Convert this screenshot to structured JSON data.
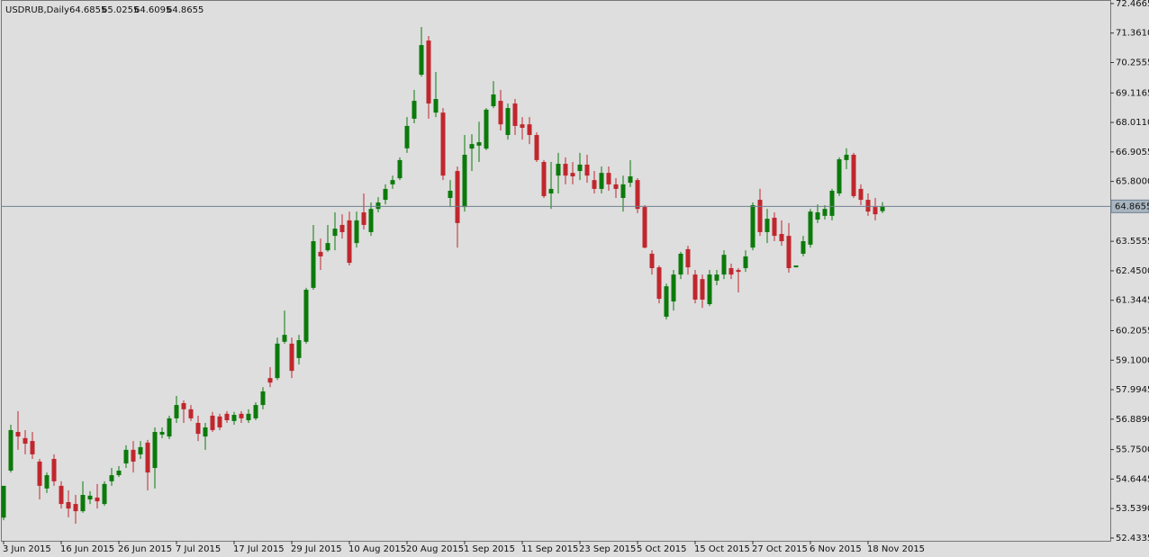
{
  "chart_data": {
    "type": "candlestick",
    "title": "USDRUB,Daily",
    "up_color": "#0b7a0b",
    "down_color": "#c0272d",
    "price_line_color": "#6f8090",
    "categories": [
      "3 Jun 2015",
      null,
      null,
      null,
      null,
      null,
      null,
      null,
      "16 Jun 2015",
      null,
      null,
      null,
      null,
      null,
      null,
      null,
      "26 Jun 2015",
      null,
      null,
      null,
      null,
      null,
      null,
      null,
      "7 Jul 2015",
      null,
      null,
      null,
      null,
      null,
      null,
      null,
      "17 Jul 2015",
      null,
      null,
      null,
      null,
      null,
      null,
      null,
      "29 Jul 2015",
      null,
      null,
      null,
      null,
      null,
      null,
      null,
      "10 Aug 2015",
      null,
      null,
      null,
      null,
      null,
      null,
      null,
      "20 Aug 2015",
      null,
      null,
      null,
      null,
      null,
      null,
      null,
      "1 Sep 2015",
      null,
      null,
      null,
      null,
      null,
      null,
      null,
      "11 Sep 2015",
      null,
      null,
      null,
      null,
      null,
      null,
      null,
      "23 Sep 2015",
      null,
      null,
      null,
      null,
      null,
      null,
      null,
      "5 Oct 2015",
      null,
      null,
      null,
      null,
      null,
      null,
      null,
      "15 Oct 2015",
      null,
      null,
      null,
      null,
      null,
      null,
      null,
      "27 Oct 2015",
      null,
      null,
      null,
      null,
      null,
      null,
      null,
      "6 Nov 2015",
      null,
      null,
      null,
      null,
      null,
      null,
      null,
      "18 Nov 2015",
      null,
      null
    ],
    "open": [
      53.2,
      54.96,
      56.41,
      56.18,
      56.07,
      55.3,
      54.29,
      55.4,
      54.39,
      53.78,
      53.71,
      53.44,
      53.88,
      53.95,
      53.71,
      54.56,
      54.79,
      55.23,
      55.74,
      55.57,
      56.01,
      55.06,
      56.31,
      56.24,
      56.92,
      57.49,
      57.26,
      56.75,
      56.24,
      57.02,
      56.99,
      57.09,
      56.82,
      57.09,
      56.85,
      56.92,
      57.42,
      58.43,
      58.43,
      59.79,
      59.72,
      59.18,
      59.79,
      61.81,
      63.16,
      63.22,
      63.76,
      64.17,
      64.34,
      63.49,
      64.64,
      63.9,
      64.77,
      65.11,
      65.69,
      65.92,
      67.04,
      68.15,
      69.8,
      71.08,
      68.38,
      68.38,
      65.18,
      66.19,
      64.84,
      67.03,
      67.14,
      67.03,
      68.62,
      68.82,
      67.54,
      68.72,
      67.94,
      67.94,
      67.54,
      66.53,
      65.35,
      66.02,
      66.46,
      66.12,
      66.19,
      66.43,
      65.85,
      65.52,
      66.12,
      65.69,
      65.18,
      65.75,
      65.85,
      64.84,
      63.09,
      62.58,
      60.73,
      61.3,
      62.31,
      63.26,
      62.31,
      62.14,
      61.2,
      62.08,
      62.31,
      62.55,
      62.48,
      62.55,
      63.32,
      65.11,
      63.9,
      64.44,
      63.83,
      63.76,
      62.58,
      63.09,
      63.43,
      64.37,
      64.51,
      64.51,
      65.35,
      66.6,
      66.8,
      65.52,
      65.11,
      64.84,
      64.6855
    ],
    "high": [
      54.39,
      56.68,
      57.19,
      56.48,
      56.41,
      55.4,
      54.89,
      55.57,
      54.56,
      54.22,
      54.05,
      54.56,
      54.19,
      54.46,
      54.56,
      55.06,
      55.13,
      55.91,
      56.07,
      56.07,
      56.11,
      56.58,
      56.58,
      57.02,
      57.76,
      57.59,
      57.42,
      57.02,
      56.75,
      57.16,
      57.09,
      57.19,
      57.16,
      57.19,
      57.26,
      57.52,
      58.09,
      58.84,
      59.95,
      60.96,
      59.95,
      60.05,
      61.81,
      64.17,
      63.66,
      64.17,
      64.64,
      64.57,
      64.67,
      64.67,
      65.35,
      65.01,
      65.21,
      65.69,
      66.02,
      66.7,
      68.21,
      69.23,
      71.59,
      71.25,
      69.9,
      68.55,
      65.85,
      66.36,
      67.54,
      67.57,
      68.04,
      68.55,
      69.56,
      69.23,
      68.72,
      68.89,
      68.21,
      68.21,
      67.64,
      66.6,
      66.53,
      66.87,
      66.7,
      66.53,
      66.87,
      66.8,
      66.19,
      66.36,
      66.36,
      65.92,
      66.02,
      66.6,
      65.92,
      64.91,
      63.22,
      62.65,
      61.97,
      62.48,
      63.16,
      63.39,
      62.48,
      62.31,
      62.48,
      62.48,
      63.22,
      62.72,
      62.55,
      63.22,
      65.01,
      65.52,
      64.77,
      64.64,
      64.34,
      64.24,
      62.65,
      63.76,
      64.77,
      64.94,
      64.91,
      65.52,
      66.7,
      67.04,
      66.87,
      65.69,
      65.35,
      65.18,
      65.0255
    ],
    "low": [
      53.1,
      54.89,
      55.74,
      55.57,
      55.4,
      53.88,
      54.12,
      54.39,
      53.54,
      53.21,
      52.97,
      53.38,
      53.71,
      53.54,
      53.64,
      54.39,
      54.72,
      55.06,
      54.89,
      55.4,
      54.22,
      54.29,
      56.18,
      56.14,
      56.75,
      56.75,
      56.82,
      56.07,
      55.74,
      56.41,
      56.48,
      56.75,
      56.68,
      56.75,
      56.75,
      56.85,
      57.26,
      58.09,
      58.36,
      59.72,
      58.43,
      58.94,
      59.72,
      61.74,
      62.48,
      63.16,
      63.22,
      63.66,
      62.65,
      63.32,
      64.0,
      63.76,
      64.64,
      64.94,
      65.52,
      65.85,
      66.87,
      67.98,
      69.73,
      68.15,
      68.21,
      65.85,
      64.84,
      63.32,
      64.67,
      66.19,
      66.53,
      66.97,
      68.55,
      67.71,
      67.37,
      67.54,
      67.37,
      67.2,
      66.53,
      65.18,
      64.77,
      65.35,
      65.69,
      65.69,
      65.85,
      65.75,
      65.35,
      65.35,
      65.45,
      65.18,
      64.67,
      65.59,
      64.61,
      63.29,
      62.31,
      61.23,
      60.63,
      60.96,
      62.14,
      62.31,
      61.23,
      61.06,
      61.13,
      61.91,
      62.14,
      62.14,
      61.64,
      62.41,
      63.22,
      63.76,
      63.49,
      63.56,
      63.39,
      62.38,
      62.58,
      62.99,
      63.32,
      64.24,
      64.37,
      64.34,
      65.25,
      66.26,
      65.18,
      64.91,
      64.51,
      64.34,
      64.6095
    ],
    "close": [
      54.39,
      56.48,
      56.24,
      55.97,
      55.57,
      54.39,
      54.79,
      54.56,
      53.71,
      53.54,
      53.44,
      54.05,
      54.02,
      53.81,
      54.46,
      54.79,
      54.96,
      55.74,
      55.3,
      55.84,
      54.89,
      56.41,
      56.41,
      56.92,
      57.42,
      57.26,
      56.92,
      56.34,
      56.58,
      56.48,
      56.58,
      56.85,
      57.05,
      56.92,
      57.09,
      57.42,
      57.93,
      58.26,
      59.72,
      60.05,
      58.7,
      59.85,
      61.74,
      63.56,
      62.99,
      63.49,
      64.03,
      63.9,
      62.75,
      64.34,
      64.17,
      64.77,
      65.01,
      65.52,
      65.85,
      66.6,
      67.88,
      68.82,
      70.91,
      68.72,
      68.89,
      66.02,
      65.45,
      64.24,
      66.8,
      67.2,
      67.27,
      68.49,
      69.06,
      67.94,
      68.55,
      67.88,
      67.81,
      67.54,
      66.6,
      65.25,
      65.52,
      66.46,
      66.02,
      65.99,
      66.43,
      66.02,
      65.52,
      66.12,
      65.69,
      65.52,
      65.69,
      65.99,
      64.77,
      63.32,
      62.55,
      61.4,
      61.87,
      62.31,
      63.09,
      62.58,
      61.37,
      61.37,
      62.31,
      62.31,
      63.05,
      62.31,
      62.41,
      62.99,
      64.91,
      63.9,
      64.4,
      63.76,
      63.56,
      62.55,
      62.65,
      63.56,
      64.67,
      64.64,
      64.77,
      65.45,
      66.63,
      66.8,
      65.25,
      65.11,
      64.67,
      64.57,
      64.8655
    ],
    "ylim": [
      52.33,
      72.6
    ],
    "yticks": [
      72.4665,
      {
        "value": 71.361,
        "label": "71.3610"
      },
      70.2555,
      69.1165,
      {
        "value": 68.011,
        "label": "68.0110"
      },
      66.9055,
      {
        "value": 65.8,
        "label": "65.8000"
      },
      63.5555,
      {
        "value": 62.45,
        "label": "62.4500"
      },
      61.3445,
      60.2055,
      {
        "value": 59.1,
        "label": "59.1000"
      },
      57.9945,
      {
        "value": 56.889,
        "label": "56.8890"
      },
      {
        "value": 55.75,
        "label": "55.7500"
      },
      54.6445,
      {
        "value": 53.539,
        "label": "53.5390"
      },
      52.4335
    ]
  }
}
